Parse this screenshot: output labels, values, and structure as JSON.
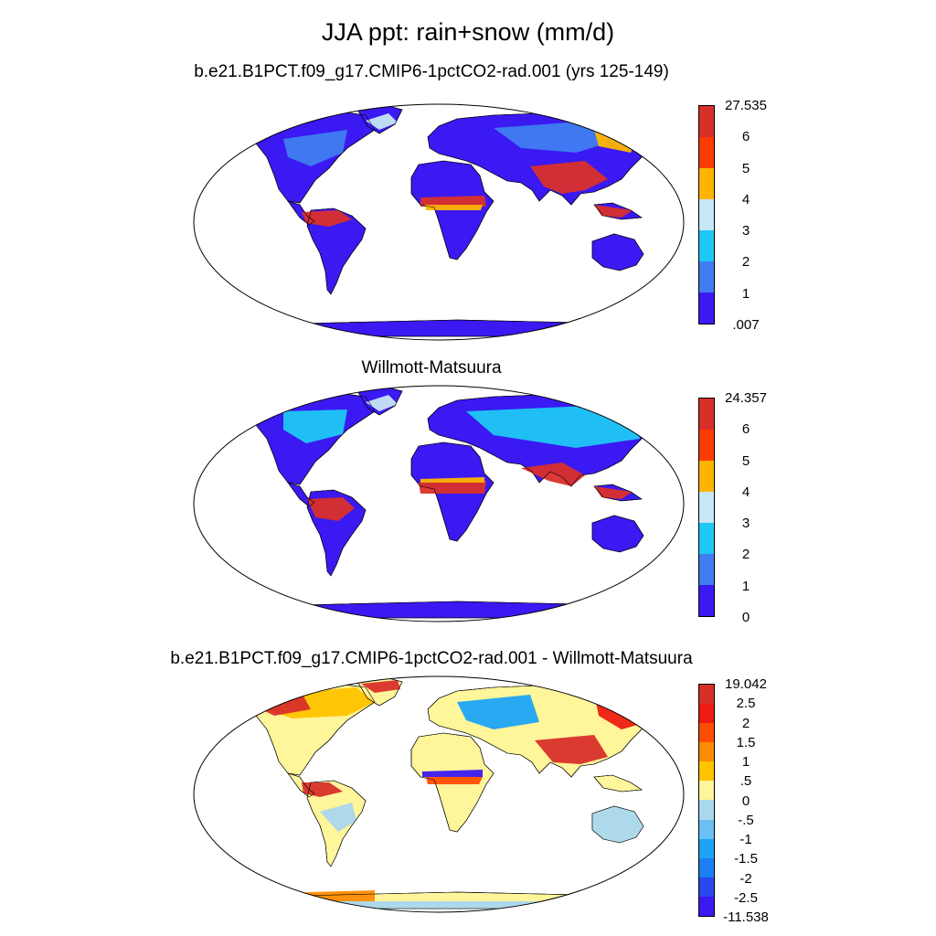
{
  "title": "JJA ppt: rain+snow (mm/d)",
  "panels": [
    {
      "id": "model",
      "title": "b.e21.B1PCT.f09_g17.CMIP6-1pctCO2-rad.001 (yrs 125-149)",
      "colorbar": {
        "labels": [
          "27.535",
          "6",
          "5",
          "4",
          "3",
          "2",
          "1",
          ".007"
        ],
        "colors": [
          "#d92f2a",
          "#ff3b00",
          "#ffb400",
          "#c7e6f6",
          "#1ec8f5",
          "#3f7df0",
          "#3a19f2"
        ]
      }
    },
    {
      "id": "obs",
      "title": "Willmott-Matsuura",
      "colorbar": {
        "labels": [
          "24.357",
          "6",
          "5",
          "4",
          "3",
          "2",
          "1",
          "0"
        ],
        "colors": [
          "#d92f2a",
          "#ff3b00",
          "#ffb400",
          "#c7e6f6",
          "#1ec8f5",
          "#3f7df0",
          "#3a19f2"
        ]
      }
    },
    {
      "id": "diff",
      "title": "b.e21.B1PCT.f09_g17.CMIP6-1pctCO2-rad.001 - Willmott-Matsuura",
      "colorbar": {
        "labels": [
          "19.042",
          "2.5",
          "2",
          "1.5",
          "1",
          ".5",
          "0",
          "-.5",
          "-1",
          "-1.5",
          "-2",
          "-2.5",
          "-11.538"
        ],
        "colors": [
          "#d92f2a",
          "#ee1c10",
          "#ff4d00",
          "#ff8c00",
          "#ffc300",
          "#fff59a",
          "#a9d7ee",
          "#6ac0f5",
          "#1ea4f6",
          "#1b7ff3",
          "#2a47f0",
          "#3a19f2"
        ]
      }
    }
  ]
}
